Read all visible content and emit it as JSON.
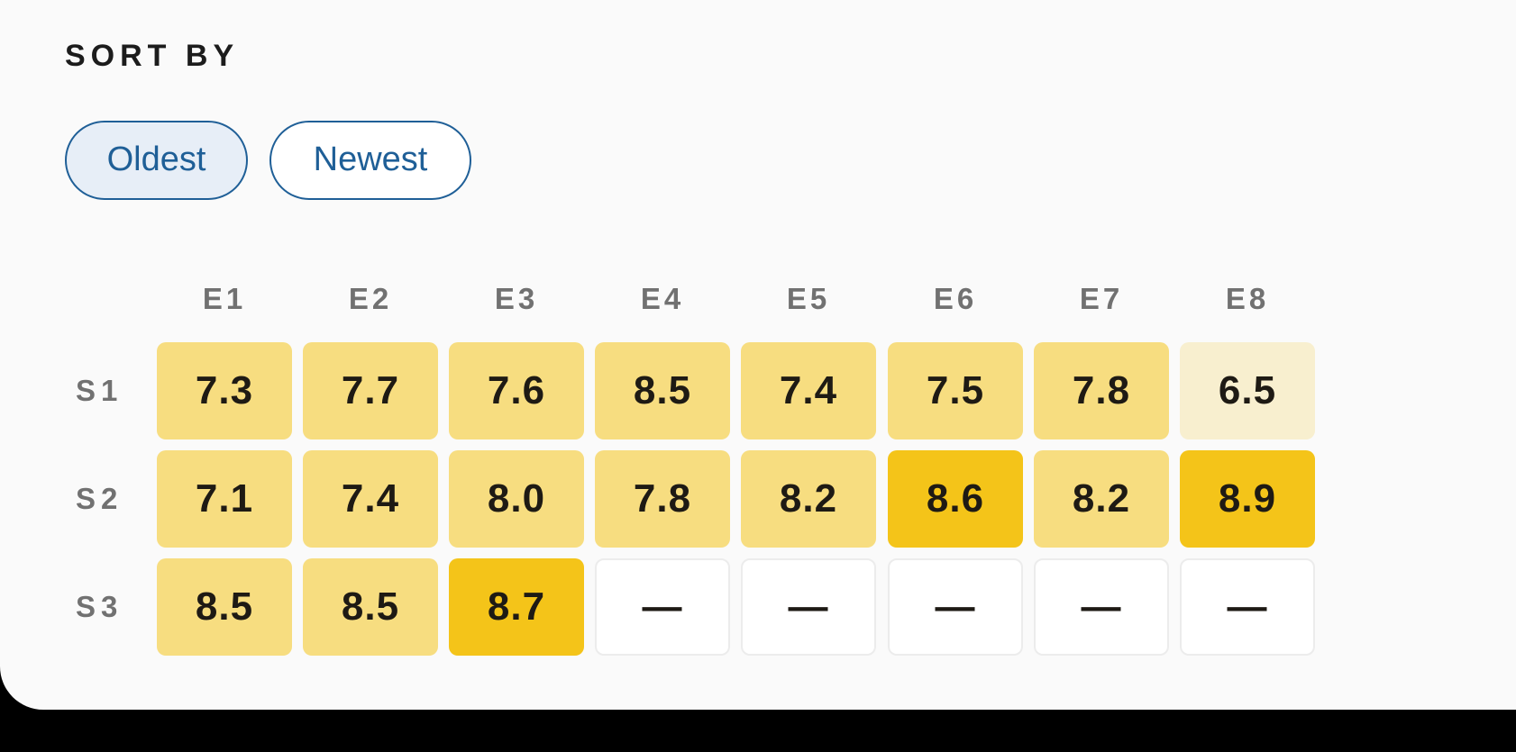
{
  "sort": {
    "title": "SORT BY",
    "options": [
      {
        "label": "Oldest",
        "selected": true
      },
      {
        "label": "Newest",
        "selected": false
      }
    ]
  },
  "grid": {
    "columns": [
      "E1",
      "E2",
      "E3",
      "E4",
      "E5",
      "E6",
      "E7",
      "E8"
    ],
    "rows": [
      {
        "label": "S1",
        "values": [
          "7.3",
          "7.7",
          "7.6",
          "8.5",
          "7.4",
          "7.5",
          "7.8",
          "6.5"
        ]
      },
      {
        "label": "S2",
        "values": [
          "7.1",
          "7.4",
          "8.0",
          "7.8",
          "8.2",
          "8.6",
          "8.2",
          "8.9"
        ]
      },
      {
        "label": "S3",
        "values": [
          "8.5",
          "8.5",
          "8.7",
          "—",
          "—",
          "—",
          "—",
          "—"
        ]
      }
    ]
  },
  "colors": {
    "chip_border": "#1f5f97",
    "chip_active_bg": "#e7eef7",
    "rating_low": "#f8efcf",
    "rating_mid": "#f7dd80",
    "rating_high": "#f4c419",
    "rating_empty": "#ffffff"
  }
}
